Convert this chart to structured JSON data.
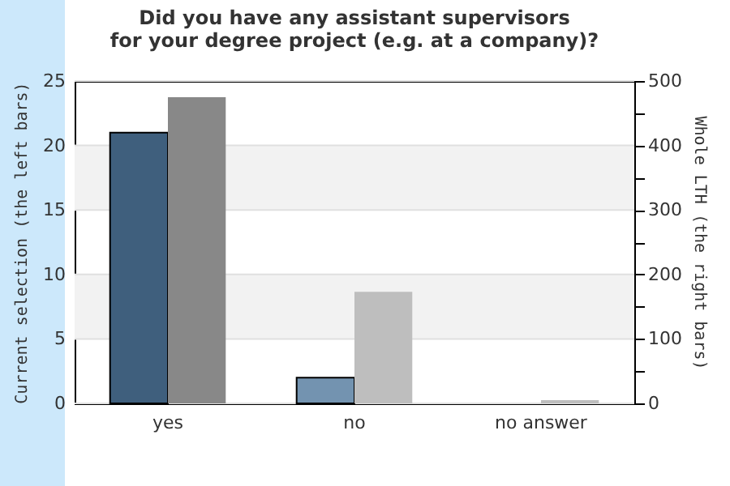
{
  "chart_data": {
    "type": "bar",
    "title": "Did you have any assistant supervisors\nfor your degree project (e.g. at a company)?",
    "categories": [
      "yes",
      "no",
      "no answer"
    ],
    "ylabel": "Current selection (the left bars)",
    "y2label": "Whole LTH (the right bars)",
    "series": [
      {
        "values": [
          21,
          2,
          0
        ],
        "colors": [
          "#3f5f7d",
          "#7393b0",
          "#7393b0"
        ],
        "axis": "y"
      },
      {
        "values": [
          475,
          173,
          5
        ],
        "colors": [
          "#888888",
          "#bebebe",
          "#bebebe"
        ],
        "axis": "y2"
      }
    ],
    "ylim": [
      0,
      25
    ],
    "yticks": [
      0,
      5,
      10,
      15,
      20,
      25
    ],
    "y2lim": [
      0,
      500
    ],
    "y2ticks": [
      0,
      {
        "value": 50,
        "label": null
      },
      100,
      {
        "value": 150,
        "label": null
      },
      200,
      {
        "value": 250,
        "label": null
      },
      300,
      {
        "value": 350,
        "label": null
      },
      400,
      {
        "value": 450,
        "label": null
      },
      500
    ],
    "bands": [
      {
        "axis": "y",
        "from": 5,
        "to": 10,
        "color": "#f2f2f2"
      },
      {
        "axis": "y",
        "from": 15,
        "to": 20,
        "color": "#f2f2f2"
      }
    ],
    "grid": "y"
  }
}
